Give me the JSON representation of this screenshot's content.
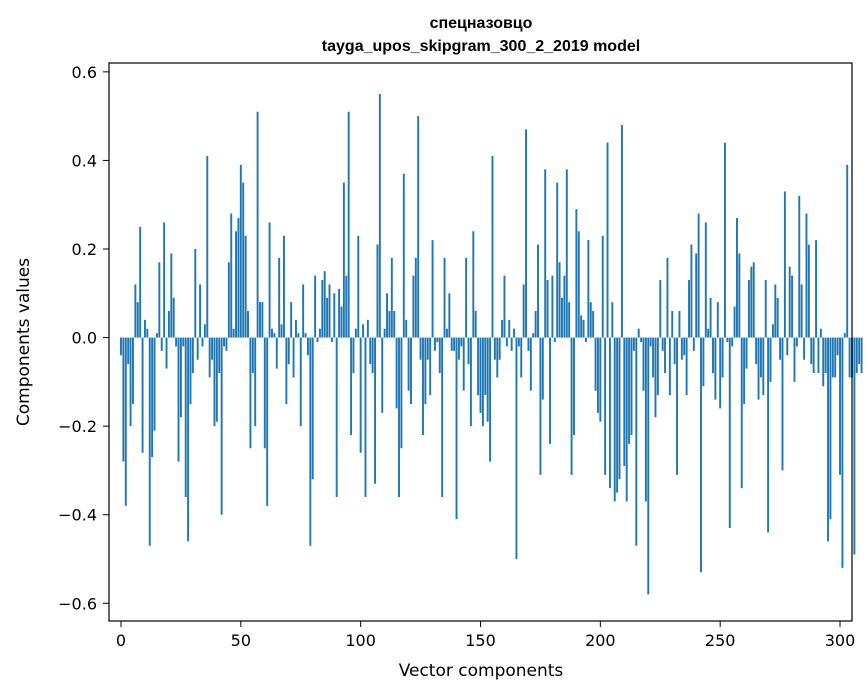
{
  "chart_data": {
    "type": "bar",
    "title_line1": "спецназовцо",
    "title_line2": "tayga_upos_skipgram_300_2_2019 model",
    "xlabel": "Vector components",
    "ylabel": "Components values",
    "xlim": [
      -5,
      305
    ],
    "ylim": [
      -0.64,
      0.62
    ],
    "xticks": [
      0,
      50,
      100,
      150,
      200,
      250,
      300
    ],
    "xtick_labels": [
      "0",
      "50",
      "100",
      "150",
      "200",
      "250",
      "300"
    ],
    "yticks": [
      -0.6,
      -0.4,
      -0.2,
      0.0,
      0.2,
      0.4,
      0.6
    ],
    "ytick_labels": [
      "−0.6",
      "−0.4",
      "−0.2",
      "0.0",
      "0.2",
      "0.4",
      "0.6"
    ],
    "bar_color": "#1f77b4",
    "values": [
      -0.04,
      -0.28,
      -0.38,
      -0.06,
      -0.2,
      -0.15,
      0.12,
      0.08,
      0.25,
      -0.26,
      0.04,
      0.02,
      -0.47,
      -0.27,
      -0.21,
      0.01,
      0.17,
      -0.03,
      0.26,
      -0.07,
      0.06,
      0.19,
      0.09,
      -0.02,
      -0.28,
      -0.18,
      -0.02,
      -0.36,
      -0.46,
      -0.15,
      -0.08,
      0.2,
      -0.05,
      0.12,
      -0.02,
      0.03,
      0.41,
      -0.09,
      -0.05,
      -0.2,
      -0.19,
      -0.08,
      -0.4,
      -0.02,
      -0.03,
      0.17,
      0.28,
      0.02,
      0.24,
      0.27,
      0.39,
      0.35,
      0.23,
      0.06,
      -0.25,
      -0.08,
      -0.2,
      0.51,
      0.08,
      0.08,
      -0.25,
      -0.38,
      0.26,
      0.02,
      0.01,
      -0.07,
      0.18,
      0.03,
      0.23,
      -0.15,
      -0.06,
      0.08,
      -0.09,
      0.04,
      0.01,
      -0.2,
      0.12,
      0.01,
      -0.04,
      -0.47,
      -0.32,
      0.14,
      -0.01,
      0.02,
      0.13,
      0.15,
      0.09,
      0.12,
      -0.01,
      0.1,
      -0.36,
      0.11,
      0.07,
      0.35,
      0.14,
      0.51,
      -0.22,
      -0.08,
      0.02,
      0.23,
      -0.26,
      0.03,
      -0.36,
      0.04,
      -0.06,
      -0.08,
      -0.33,
      0.21,
      0.55,
      -0.17,
      0.02,
      0.1,
      0.06,
      0.18,
      0.06,
      -0.16,
      -0.36,
      -0.25,
      0.37,
      0.04,
      -0.12,
      -0.15,
      0.14,
      0.18,
      0.5,
      -0.05,
      -0.22,
      -0.15,
      -0.05,
      -0.13,
      0.22,
      -0.03,
      -0.01,
      -0.08,
      -0.36,
      0.18,
      0.02,
      0.1,
      -0.03,
      -0.03,
      -0.41,
      -0.05,
      -0.02,
      -0.12,
      0.18,
      -0.06,
      -0.2,
      0.24,
      0.06,
      -0.13,
      -0.17,
      -0.2,
      -0.13,
      -0.19,
      -0.28,
      0.41,
      -0.05,
      -0.09,
      -0.05,
      0.04,
      0.14,
      -0.02,
      0.04,
      -0.03,
      0.02,
      -0.5,
      -0.02,
      -0.09,
      0.12,
      0.47,
      -0.03,
      -0.12,
      0.01,
      0.06,
      0.21,
      -0.31,
      -0.14,
      0.38,
      0.13,
      -0.24,
      0.14,
      -0.01,
      0.35,
      0.17,
      0.09,
      0.14,
      0.38,
      0.08,
      -0.31,
      -0.22,
      0.29,
      0.24,
      0.05,
      0.04,
      -0.01,
      0.22,
      0.08,
      0.06,
      -0.12,
      -0.17,
      -0.19,
      0.23,
      -0.31,
      0.44,
      -0.34,
      0.08,
      -0.37,
      -0.35,
      -0.32,
      0.48,
      -0.29,
      -0.37,
      -0.24,
      -0.22,
      -0.03,
      -0.47,
      0.02,
      -0.01,
      -0.12,
      -0.37,
      -0.58,
      -0.02,
      -0.09,
      -0.18,
      -0.13,
      0.13,
      -0.03,
      -0.08,
      0.18,
      -0.13,
      0.06,
      -0.06,
      -0.31,
      0.06,
      -0.05,
      -0.04,
      -0.13,
      0.13,
      0.21,
      -0.03,
      0.19,
      0.28,
      -0.53,
      -0.11,
      0.26,
      0.02,
      0.09,
      -0.08,
      -0.14,
      0.08,
      -0.16,
      -0.09,
      0.44,
      -0.01,
      -0.43,
      -0.02,
      0.07,
      0.27,
      0.19,
      -0.34,
      -0.15,
      -0.07,
      0.13,
      0.16,
      0.17,
      -0.06,
      -0.14,
      -0.09,
      -0.13,
      0.13,
      -0.44,
      -0.1,
      0.03,
      0.12,
      0.09,
      -0.05,
      -0.3,
      0.33,
      -0.04,
      0.16,
      0.14,
      -0.1,
      -0.02,
      0.32,
      0.12,
      -0.05,
      0.28,
      0.21,
      -0.06,
      -0.08,
      0.22,
      -0.08,
      0.02,
      -0.11,
      -0.08,
      -0.46,
      -0.41,
      -0.09,
      -0.09,
      -0.04,
      -0.31,
      -0.52,
      0.01,
      0.39,
      -0.09,
      -0.09,
      -0.49,
      -0.08,
      -0.06,
      -0.08
    ]
  }
}
